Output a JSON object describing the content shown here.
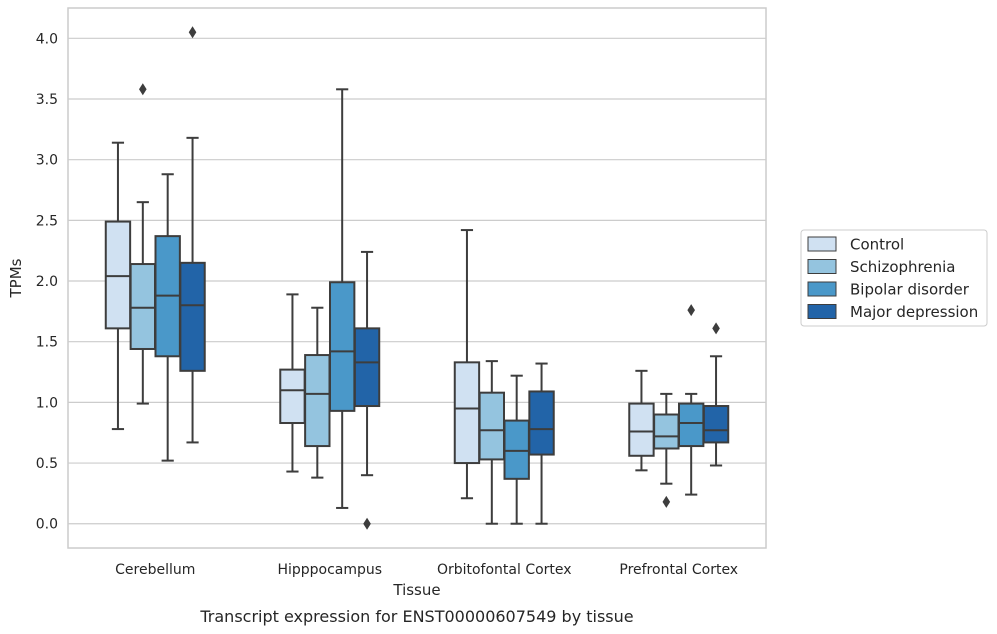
{
  "chart_data": {
    "type": "box",
    "xlabel": "Tissue",
    "ylabel": "TPMs",
    "caption": "Transcript expression for ENST00000607549 by tissue",
    "ylim": [
      -0.2,
      4.25
    ],
    "yticks": [
      "0.0",
      "0.5",
      "1.0",
      "1.5",
      "2.0",
      "2.5",
      "3.0",
      "3.5",
      "4.0"
    ],
    "grid": "horizontal",
    "legend_position": "right",
    "categories": [
      "Cerebellum",
      "Hipppocampus",
      "Orbitofontal Cortex",
      "Prefrontal Cortex"
    ],
    "series": [
      {
        "name": "Control",
        "color": "#d0e1f2",
        "boxes": [
          {
            "whisker_low": 0.78,
            "q1": 1.61,
            "median": 2.04,
            "q3": 2.49,
            "whisker_high": 3.14,
            "outliers": []
          },
          {
            "whisker_low": 0.43,
            "q1": 0.83,
            "median": 1.1,
            "q3": 1.27,
            "whisker_high": 1.89,
            "outliers": []
          },
          {
            "whisker_low": 0.21,
            "q1": 0.5,
            "median": 0.95,
            "q3": 1.33,
            "whisker_high": 2.42,
            "outliers": []
          },
          {
            "whisker_low": 0.44,
            "q1": 0.56,
            "median": 0.76,
            "q3": 0.99,
            "whisker_high": 1.26,
            "outliers": []
          }
        ]
      },
      {
        "name": "Schizophrenia",
        "color": "#94c4df",
        "boxes": [
          {
            "whisker_low": 0.99,
            "q1": 1.44,
            "median": 1.78,
            "q3": 2.14,
            "whisker_high": 2.65,
            "outliers": [
              3.58
            ]
          },
          {
            "whisker_low": 0.38,
            "q1": 0.64,
            "median": 1.07,
            "q3": 1.39,
            "whisker_high": 1.78,
            "outliers": []
          },
          {
            "whisker_low": 0.0,
            "q1": 0.53,
            "median": 0.77,
            "q3": 1.08,
            "whisker_high": 1.34,
            "outliers": []
          },
          {
            "whisker_low": 0.33,
            "q1": 0.62,
            "median": 0.72,
            "q3": 0.9,
            "whisker_high": 1.07,
            "outliers": [
              0.18
            ]
          }
        ]
      },
      {
        "name": "Bipolar disorder",
        "color": "#4a98c9",
        "boxes": [
          {
            "whisker_low": 0.52,
            "q1": 1.38,
            "median": 1.88,
            "q3": 2.37,
            "whisker_high": 2.88,
            "outliers": []
          },
          {
            "whisker_low": 0.13,
            "q1": 0.93,
            "median": 1.42,
            "q3": 1.99,
            "whisker_high": 3.58,
            "outliers": []
          },
          {
            "whisker_low": 0.0,
            "q1": 0.37,
            "median": 0.6,
            "q3": 0.85,
            "whisker_high": 1.22,
            "outliers": []
          },
          {
            "whisker_low": 0.24,
            "q1": 0.64,
            "median": 0.83,
            "q3": 0.99,
            "whisker_high": 1.07,
            "outliers": [
              1.76
            ]
          }
        ]
      },
      {
        "name": "Major depression",
        "color": "#2264a8",
        "boxes": [
          {
            "whisker_low": 0.67,
            "q1": 1.26,
            "median": 1.8,
            "q3": 2.15,
            "whisker_high": 3.18,
            "outliers": [
              4.05
            ]
          },
          {
            "whisker_low": 0.4,
            "q1": 0.97,
            "median": 1.33,
            "q3": 1.61,
            "whisker_high": 2.24,
            "outliers": [
              0.0
            ]
          },
          {
            "whisker_low": 0.0,
            "q1": 0.57,
            "median": 0.78,
            "q3": 1.09,
            "whisker_high": 1.32,
            "outliers": []
          },
          {
            "whisker_low": 0.48,
            "q1": 0.67,
            "median": 0.77,
            "q3": 0.97,
            "whisker_high": 1.38,
            "outliers": [
              1.61
            ]
          }
        ]
      }
    ]
  }
}
